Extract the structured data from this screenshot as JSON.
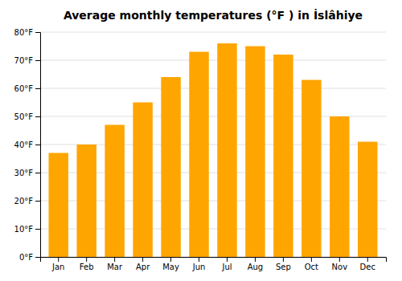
{
  "chart_data": {
    "type": "bar",
    "title": "Average monthly temperatures (°F ) in İslâhiye",
    "categories": [
      "Jan",
      "Feb",
      "Mar",
      "Apr",
      "May",
      "Jun",
      "Jul",
      "Aug",
      "Sep",
      "Oct",
      "Nov",
      "Dec"
    ],
    "values": [
      37,
      40,
      47,
      55,
      64,
      73,
      76,
      75,
      72,
      63,
      50,
      41
    ],
    "color": "#FFA500",
    "ylim": [
      0,
      80
    ],
    "yticks": [
      {
        "value": 0,
        "label": "0°F"
      },
      {
        "value": 10,
        "label": "10°F"
      },
      {
        "value": 20,
        "label": "20°F"
      },
      {
        "value": 30,
        "label": "30°F"
      },
      {
        "value": 40,
        "label": "40°F"
      },
      {
        "value": 50,
        "label": "50°F"
      },
      {
        "value": 60,
        "label": "60°F"
      },
      {
        "value": 70,
        "label": "70°F"
      },
      {
        "value": 80,
        "label": "80°F"
      }
    ],
    "grid": true
  }
}
